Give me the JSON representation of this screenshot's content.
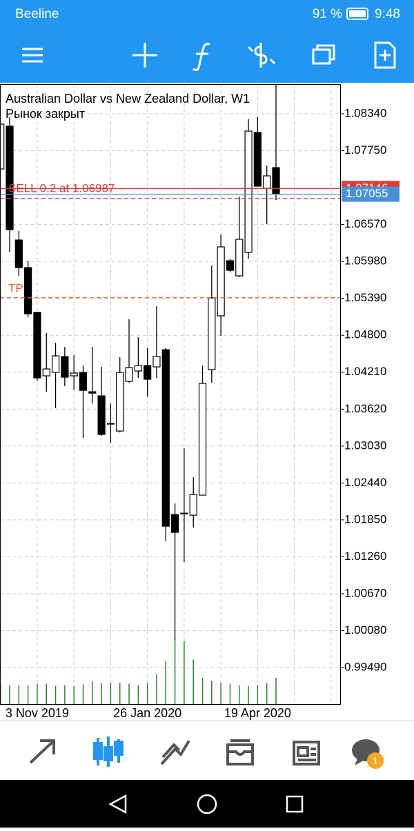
{
  "status_bar": {
    "carrier": "Beeline",
    "battery": "91 %",
    "time": "9:48"
  },
  "chart_data": {
    "type": "candlestick",
    "title": "Australian Dollar vs New Zealand Dollar, W1",
    "subtitle": "Рынок закрыт",
    "categories": [
      null,
      null,
      null,
      null,
      "3 Nov 2019",
      null,
      null,
      null,
      null,
      null,
      null,
      null,
      null,
      null,
      null,
      null,
      "26 Jan 2020",
      null,
      null,
      null,
      null,
      null,
      null,
      null,
      null,
      null,
      null,
      null,
      "19 Apr 2020",
      null,
      null
    ],
    "open": [
      1.07458,
      1.08142,
      1.06323,
      1.05882,
      1.05166,
      1.04152,
      1.04207,
      1.0446,
      1.04152,
      1.04207,
      1.03898,
      1.03832,
      1.03391,
      1.0327,
      1.04064,
      1.04229,
      1.04317,
      1.04295,
      1.0457,
      1.01936,
      1.01947,
      1.01925,
      1.02245,
      1.04251,
      1.05111,
      1.05992,
      1.0575,
      1.06125,
      1.08042,
      1.0715,
      1.0748
    ],
    "high": [
      1.08175,
      1.08285,
      1.06466,
      1.05992,
      1.05177,
      1.04835,
      1.04681,
      1.04615,
      1.04482,
      1.04317,
      1.04615,
      1.04295,
      1.03711,
      1.04449,
      1.05056,
      1.04769,
      1.04593,
      1.05265,
      1.04593,
      1.02113,
      1.02994,
      1.02531,
      1.04317,
      1.05915,
      1.06411,
      1.06025,
      1.07017,
      1.08252,
      1.08285,
      1.07513,
      1.0881
    ],
    "low": [
      1.07458,
      1.06136,
      1.0575,
      1.05089,
      1.04075,
      1.03898,
      1.03634,
      1.03987,
      1.03932,
      1.0316,
      1.03711,
      1.03193,
      1.03083,
      1.03248,
      1.04042,
      1.04119,
      1.03821,
      1.04119,
      1.01507,
      0.9993,
      1.01176,
      1.01727,
      1.02245,
      1.04042,
      1.04791,
      1.05805,
      1.05728,
      1.06025,
      1.07183,
      1.06576,
      1.06962
    ],
    "close": [
      1.08175,
      1.06488,
      1.05882,
      1.05144,
      1.04119,
      1.04262,
      1.04471,
      1.0413,
      1.04196,
      1.0392,
      1.03876,
      1.03215,
      1.0338,
      1.04207,
      1.04284,
      1.04317,
      1.04097,
      1.0446,
      1.01749,
      1.0165,
      1.01958,
      1.02256,
      1.04031,
      1.05397,
      1.06213,
      1.05838,
      1.06334,
      1.08064,
      1.07183,
      1.07348,
      1.07055
    ],
    "volume": [
      28,
      27,
      27,
      27,
      29,
      29,
      26,
      27,
      26,
      28,
      32,
      30,
      30,
      30,
      29,
      27,
      30,
      42,
      60,
      90,
      88,
      62,
      37,
      33,
      30,
      29,
      27,
      26,
      27,
      30,
      37
    ],
    "up_color": "#ffffff",
    "down_color": "#000000",
    "volume_color": "#2e7d32",
    "ylim": [
      0.98895,
      1.08814
    ],
    "yticks": [
      {
        "value": 1.0834,
        "label": "1.08340"
      },
      {
        "value": 1.0775,
        "label": "1.07750"
      },
      {
        "value": 1.0657,
        "label": "1.06570"
      },
      {
        "value": 1.0598,
        "label": "1.05980"
      },
      {
        "value": 1.0539,
        "label": "1.05390"
      },
      {
        "value": 1.048,
        "label": "1.04800"
      },
      {
        "value": 1.0421,
        "label": "1.04210"
      },
      {
        "value": 1.0362,
        "label": "1.03620"
      },
      {
        "value": 1.0303,
        "label": "1.03030"
      },
      {
        "value": 1.0244,
        "label": "1.02440"
      },
      {
        "value": 1.0185,
        "label": "1.01850"
      },
      {
        "value": 1.0126,
        "label": "1.01260"
      },
      {
        "value": 1.0067,
        "label": "1.00670"
      },
      {
        "value": 1.0008,
        "label": "1.00080"
      },
      {
        "value": 0.9949,
        "label": "0.99490"
      }
    ],
    "grid": true,
    "orders": [
      {
        "label": "SELL 0.2 at 1.06987",
        "value": 1.06987,
        "color": "#e53935"
      }
    ],
    "take_profit": {
      "label": "TP",
      "value": 1.054,
      "color": "#e65c2e"
    },
    "price_lines": [
      {
        "value": 1.07146,
        "color": "#e53935"
      },
      {
        "value": 1.07055,
        "color": "#4a90d9"
      }
    ]
  },
  "bottom_tabs": {
    "badge": "1"
  }
}
